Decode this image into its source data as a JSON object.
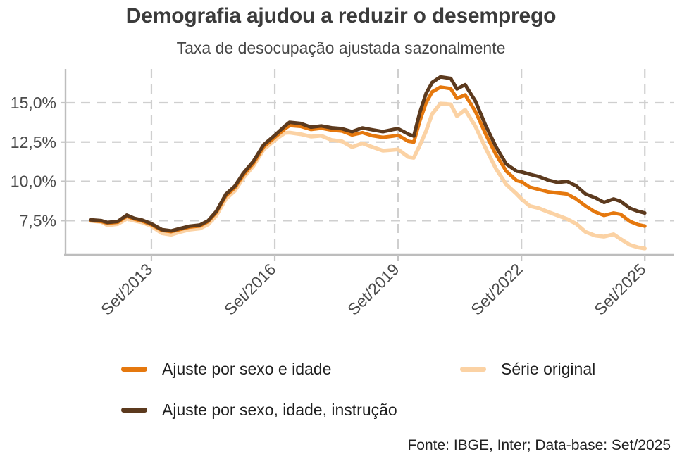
{
  "header": {
    "title": "Demografia ajudou a reduzir o desemprego",
    "subtitle": "Taxa de desocupação ajustada sazonalmente"
  },
  "footer": {
    "source": "Fonte: IBGE, Inter; Data-base: Set/2025"
  },
  "legend": {
    "items": [
      {
        "label": "Ajuste por sexo e idade",
        "color": "#E5780E"
      },
      {
        "label": "Série original",
        "color": "#FBD2A4"
      },
      {
        "label": "Ajuste por sexo, idade, instrução",
        "color": "#5C3A1E"
      }
    ]
  },
  "colors": {
    "grid": "#CFCFCF",
    "axis": "#BDBDBD",
    "tick": "#C4C4C4",
    "tick_label": "#4A4A4A",
    "title": "#3B3B3B"
  },
  "chart_data": {
    "type": "line",
    "title": "Demografia ajudou a reduzir o desemprego",
    "subtitle": "Taxa de desocupação ajustada sazonalmente",
    "x_unit": "decimal_year",
    "grid": "dashed",
    "legend_position": "bottom",
    "xlim": [
      2011.58,
      2026.3
    ],
    "ylim": [
      5.32,
      17.15
    ],
    "yticks": [
      {
        "v": 7.5,
        "label": "7,5%"
      },
      {
        "v": 10.0,
        "label": "10,0%"
      },
      {
        "v": 12.5,
        "label": "12,5%"
      },
      {
        "v": 15.0,
        "label": "15,0%"
      }
    ],
    "xticks": [
      {
        "v": 2013.67,
        "label": "Set/2013"
      },
      {
        "v": 2016.67,
        "label": "Set/2016"
      },
      {
        "v": 2019.67,
        "label": "Set/2019"
      },
      {
        "v": 2022.67,
        "label": "Set/2022"
      },
      {
        "v": 2025.67,
        "label": "Set/2025"
      }
    ],
    "x": [
      2012.2,
      2012.45,
      2012.6,
      2012.85,
      2013.07,
      2013.25,
      2013.45,
      2013.67,
      2013.92,
      2014.15,
      2014.37,
      2014.6,
      2014.85,
      2015.05,
      2015.25,
      2015.48,
      2015.7,
      2015.9,
      2016.15,
      2016.4,
      2016.67,
      2016.92,
      2017.03,
      2017.3,
      2017.55,
      2017.8,
      2018.05,
      2018.3,
      2018.55,
      2018.8,
      2019.05,
      2019.3,
      2019.55,
      2019.67,
      2019.92,
      2020.05,
      2020.2,
      2020.35,
      2020.5,
      2020.7,
      2020.95,
      2021.1,
      2021.3,
      2021.55,
      2021.8,
      2022.05,
      2022.3,
      2022.55,
      2022.67,
      2022.87,
      2023.1,
      2023.32,
      2023.55,
      2023.78,
      2024.0,
      2024.23,
      2024.46,
      2024.68,
      2024.91,
      2025.08,
      2025.31,
      2025.5,
      2025.67
    ],
    "series": [
      {
        "name": "Série original",
        "color": "#FBD2A4",
        "width": 5.5,
        "values": [
          7.48,
          7.42,
          7.2,
          7.28,
          7.62,
          7.5,
          7.38,
          7.15,
          6.7,
          6.6,
          6.78,
          6.93,
          7.0,
          7.26,
          7.83,
          8.88,
          9.4,
          10.2,
          10.98,
          12.03,
          12.63,
          13.08,
          13.1,
          13.0,
          12.85,
          12.9,
          12.63,
          12.55,
          12.18,
          12.42,
          12.18,
          11.95,
          12.0,
          12.03,
          11.55,
          11.5,
          12.3,
          13.2,
          14.3,
          14.95,
          14.9,
          14.15,
          14.55,
          13.5,
          12.1,
          10.8,
          9.8,
          9.2,
          8.88,
          8.43,
          8.28,
          8.05,
          7.83,
          7.6,
          7.3,
          6.78,
          6.55,
          6.48,
          6.63,
          6.33,
          5.95,
          5.8,
          5.73
        ]
      },
      {
        "name": "Ajuste por sexo e idade",
        "color": "#E5780E",
        "width": 5,
        "values": [
          7.5,
          7.45,
          7.33,
          7.4,
          7.78,
          7.6,
          7.47,
          7.24,
          6.88,
          6.8,
          6.94,
          7.09,
          7.16,
          7.44,
          8.03,
          9.08,
          9.6,
          10.38,
          11.15,
          12.2,
          12.8,
          13.35,
          13.55,
          13.5,
          13.3,
          13.38,
          13.26,
          13.2,
          12.95,
          13.1,
          12.9,
          12.8,
          12.88,
          12.93,
          12.55,
          12.5,
          13.85,
          15.0,
          15.7,
          16.0,
          15.9,
          15.28,
          15.5,
          14.45,
          13.0,
          11.7,
          10.65,
          10.05,
          9.97,
          9.63,
          9.48,
          9.33,
          9.26,
          9.19,
          8.88,
          8.43,
          8.05,
          7.83,
          7.98,
          7.9,
          7.45,
          7.25,
          7.15
        ]
      },
      {
        "name": "Ajuste por sexo, idade, instrução",
        "color": "#5C3A1E",
        "width": 5,
        "values": [
          7.55,
          7.5,
          7.38,
          7.45,
          7.85,
          7.65,
          7.53,
          7.3,
          6.93,
          6.85,
          7.0,
          7.15,
          7.22,
          7.5,
          8.1,
          9.18,
          9.7,
          10.5,
          11.28,
          12.33,
          12.93,
          13.53,
          13.76,
          13.68,
          13.45,
          13.53,
          13.41,
          13.35,
          13.16,
          13.4,
          13.28,
          13.16,
          13.3,
          13.35,
          13.0,
          12.88,
          14.4,
          15.6,
          16.3,
          16.65,
          16.55,
          15.88,
          16.15,
          15.1,
          13.55,
          12.2,
          11.1,
          10.65,
          10.6,
          10.45,
          10.3,
          10.08,
          9.93,
          10.0,
          9.71,
          9.19,
          8.96,
          8.66,
          8.88,
          8.73,
          8.28,
          8.1,
          7.98
        ]
      }
    ]
  }
}
